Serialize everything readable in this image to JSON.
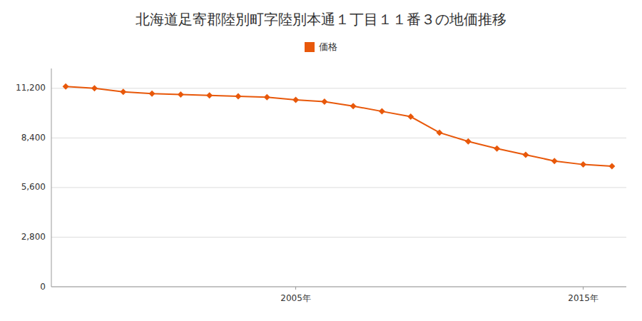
{
  "chart_data": {
    "type": "line",
    "title": "北海道足寄郡陸別町字陸別本通１丁目１１番３の地価推移",
    "x": [
      1997,
      1998,
      1999,
      2000,
      2001,
      2002,
      2003,
      2004,
      2005,
      2006,
      2007,
      2008,
      2009,
      2010,
      2011,
      2012,
      2013,
      2014,
      2015,
      2016
    ],
    "series": [
      {
        "name": "価格",
        "color": "#e8580a",
        "marker": "diamond",
        "line_style": "solid",
        "values": [
          11300,
          11200,
          11000,
          10900,
          10850,
          10800,
          10750,
          10700,
          10550,
          10450,
          10200,
          9900,
          9600,
          8700,
          8200,
          7800,
          7450,
          7100,
          6900,
          6800
        ]
      }
    ],
    "xlim": [
      1996.5,
      2016.5
    ],
    "xticks": [
      {
        "value": 2005,
        "label": "2005年"
      },
      {
        "value": 2015,
        "label": "2015年"
      }
    ],
    "ylim": [
      0,
      12320
    ],
    "yticks": [
      0,
      {
        "value": 2800,
        "label": "2,800"
      },
      {
        "value": 5600,
        "label": "5,600"
      },
      {
        "value": 8400,
        "label": "8,400"
      },
      {
        "value": 11200,
        "label": "11,200"
      }
    ],
    "grid": true,
    "legend": "top"
  }
}
